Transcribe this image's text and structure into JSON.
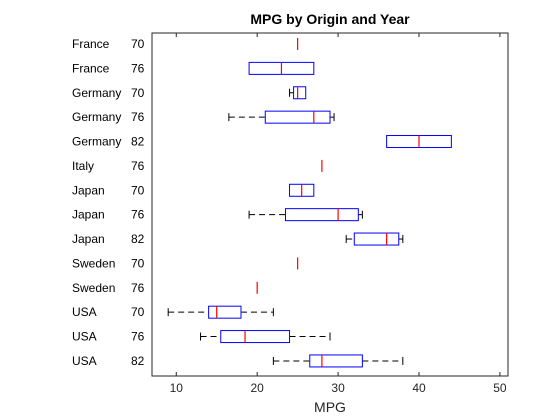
{
  "chart_data": {
    "type": "boxplot",
    "orientation": "horizontal",
    "title": "MPG by Origin and Year",
    "xlabel": "MPG",
    "ylabel": "",
    "xlim": [
      7,
      51
    ],
    "xticks": [
      10,
      20,
      30,
      40,
      50
    ],
    "grid": false,
    "colors": {
      "box": "#0000ff",
      "median": "#ff0000",
      "whisker": "#000000",
      "axis": "#262626"
    },
    "groups": [
      {
        "origin": "France",
        "year": "70",
        "min": 25,
        "q1": 25,
        "median": 25,
        "q3": 25,
        "max": 25
      },
      {
        "origin": "France",
        "year": "76",
        "min": 19,
        "q1": 19,
        "median": 23,
        "q3": 27,
        "max": 27
      },
      {
        "origin": "Germany",
        "year": "70",
        "min": 24,
        "q1": 24.5,
        "median": 25,
        "q3": 26,
        "max": 26
      },
      {
        "origin": "Germany",
        "year": "76",
        "min": 16.5,
        "q1": 21,
        "median": 27,
        "q3": 29,
        "max": 29.5
      },
      {
        "origin": "Germany",
        "year": "82",
        "min": 36,
        "q1": 36,
        "median": 40,
        "q3": 44,
        "max": 44
      },
      {
        "origin": "Italy",
        "year": "76",
        "min": 28,
        "q1": 28,
        "median": 28,
        "q3": 28,
        "max": 28
      },
      {
        "origin": "Japan",
        "year": "70",
        "min": 24,
        "q1": 24,
        "median": 25.5,
        "q3": 27,
        "max": 27
      },
      {
        "origin": "Japan",
        "year": "76",
        "min": 19,
        "q1": 23.5,
        "median": 30,
        "q3": 32.5,
        "max": 33
      },
      {
        "origin": "Japan",
        "year": "82",
        "min": 31,
        "q1": 32,
        "median": 36,
        "q3": 37.5,
        "max": 38
      },
      {
        "origin": "Sweden",
        "year": "70",
        "min": 25,
        "q1": 25,
        "median": 25,
        "q3": 25,
        "max": 25
      },
      {
        "origin": "Sweden",
        "year": "76",
        "min": 20,
        "q1": 20,
        "median": 20,
        "q3": 20,
        "max": 20
      },
      {
        "origin": "USA",
        "year": "70",
        "min": 9,
        "q1": 14,
        "median": 15,
        "q3": 18,
        "max": 22
      },
      {
        "origin": "USA",
        "year": "76",
        "min": 13,
        "q1": 15.5,
        "median": 18.5,
        "q3": 24,
        "max": 29
      },
      {
        "origin": "USA",
        "year": "82",
        "min": 22,
        "q1": 26.5,
        "median": 28,
        "q3": 33,
        "max": 38
      }
    ]
  }
}
